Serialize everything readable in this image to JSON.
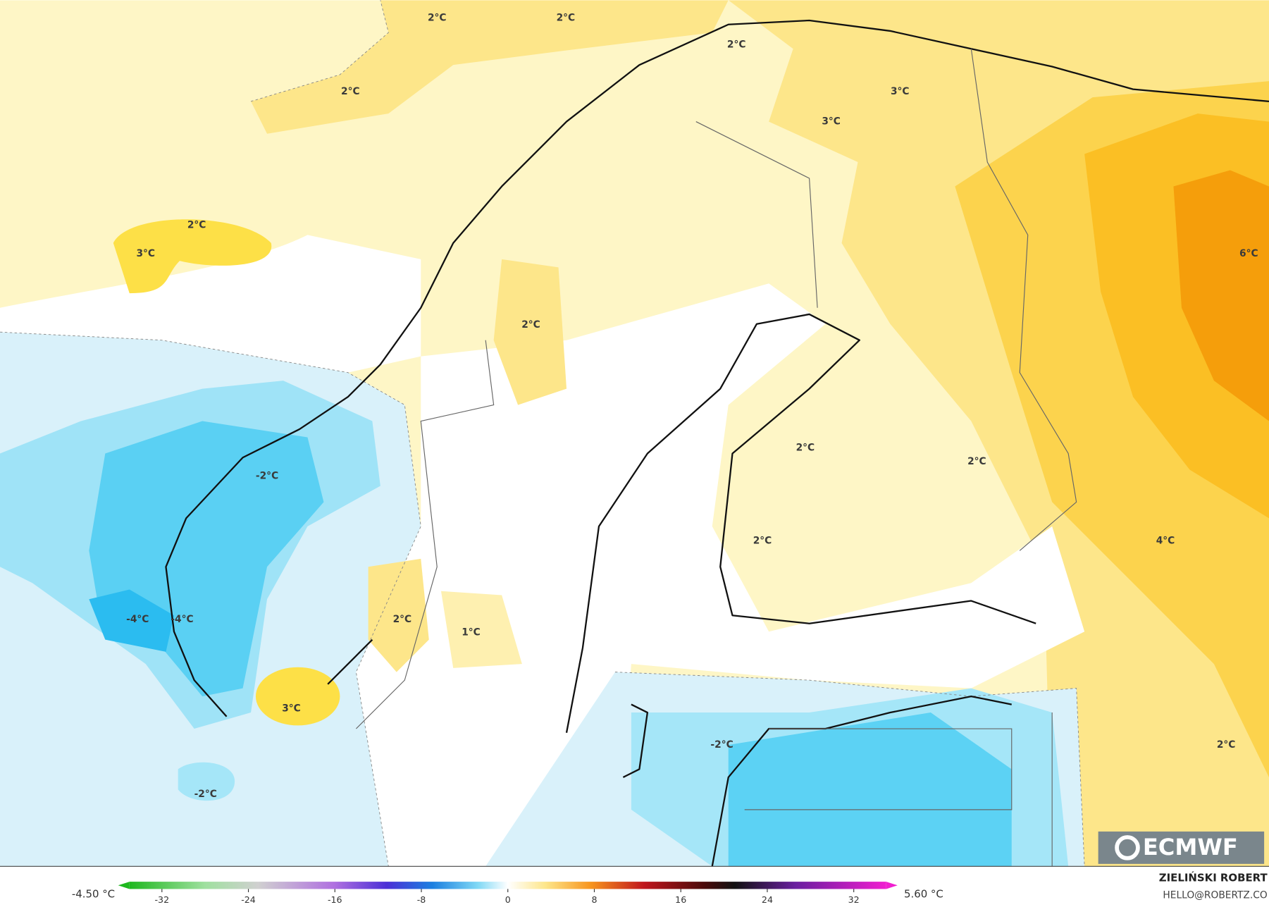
{
  "map": {
    "labels": [
      "2°C",
      "2°C",
      "2°C",
      "2°C",
      "3°C",
      "3°C",
      "2°C",
      "3°C",
      "6°C",
      "2°C",
      "2°C",
      "2°C",
      "-2°C",
      "2°C",
      "4°C",
      "-4°C",
      "-4°C",
      "2°C",
      "1°C",
      "3°C",
      "-2°C",
      "2°C",
      "-2°C"
    ]
  },
  "colorbar": {
    "min_label": "-4.50 °C",
    "max_label": "5.60 °C",
    "range": [
      -35,
      35
    ],
    "ticks": [
      -32,
      -24,
      -16,
      -8,
      0,
      8,
      16,
      24,
      32
    ]
  },
  "credit": {
    "name": "ZIELIŃSKI ROBERT",
    "contact": "HELLO@ROBERTZ.CO"
  },
  "logo": "ECMWF"
}
